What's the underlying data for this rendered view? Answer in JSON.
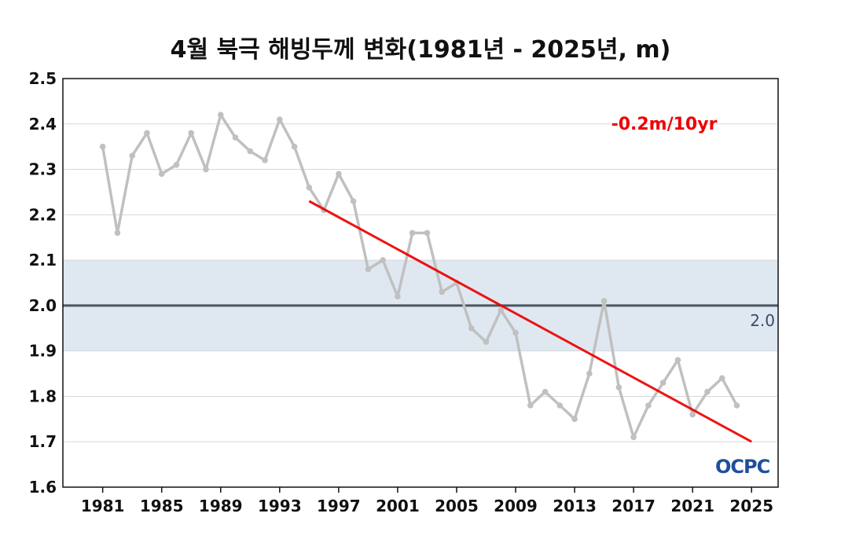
{
  "title": "4월 북극 해빙두께 변화(1981년 - 2025년, m)",
  "logo_text": "OCPC",
  "chart_data": {
    "type": "line",
    "title": "4월 북극 해빙두께 변화(1981년 - 2025년, m)",
    "xlabel": "",
    "ylabel": "",
    "xlim": [
      1978.3,
      2026.8
    ],
    "ylim": [
      1.6,
      2.5
    ],
    "xticks": [
      1981,
      1985,
      1989,
      1993,
      1997,
      2001,
      2005,
      2009,
      2013,
      2017,
      2021,
      2025
    ],
    "yticks": [
      1.6,
      1.7,
      1.8,
      1.9,
      2.0,
      2.1,
      2.2,
      2.3,
      2.4,
      2.5
    ],
    "grid": true,
    "series": [
      {
        "x": [
          1981,
          1982,
          1983,
          1984,
          1985,
          1986,
          1987,
          1988,
          1989,
          1990,
          1991,
          1992,
          1993,
          1994,
          1995,
          1996,
          1997,
          1998,
          1999,
          2000,
          2001,
          2002,
          2003,
          2004,
          2005,
          2006,
          2007,
          2008,
          2009,
          2010,
          2011,
          2012,
          2013,
          2014,
          2015,
          2016,
          2017,
          2018,
          2019,
          2020,
          2021,
          2022,
          2023,
          2024
        ],
        "values": [
          2.35,
          2.16,
          2.33,
          2.38,
          2.29,
          2.31,
          2.38,
          2.3,
          2.42,
          2.37,
          2.34,
          2.32,
          2.41,
          2.35,
          2.26,
          2.21,
          2.29,
          2.23,
          2.08,
          2.1,
          2.02,
          2.16,
          2.16,
          2.03,
          2.05,
          1.95,
          1.92,
          1.99,
          1.94,
          1.78,
          1.81,
          1.78,
          1.75,
          1.85,
          2.01,
          1.82,
          1.71,
          1.78,
          1.83,
          1.88,
          1.76,
          1.81,
          1.84,
          1.78
        ],
        "color": "#c0c0c0"
      }
    ],
    "trend": {
      "x": [
        1995,
        2025
      ],
      "values": [
        2.23,
        1.7
      ],
      "color": "#ee0000",
      "label": "-0.2m/10yr"
    },
    "reference": {
      "value": 2.0,
      "label": "2.0",
      "color": "#4a5560",
      "band": [
        1.9,
        2.1
      ],
      "band_color": "#dfe8f1"
    }
  }
}
